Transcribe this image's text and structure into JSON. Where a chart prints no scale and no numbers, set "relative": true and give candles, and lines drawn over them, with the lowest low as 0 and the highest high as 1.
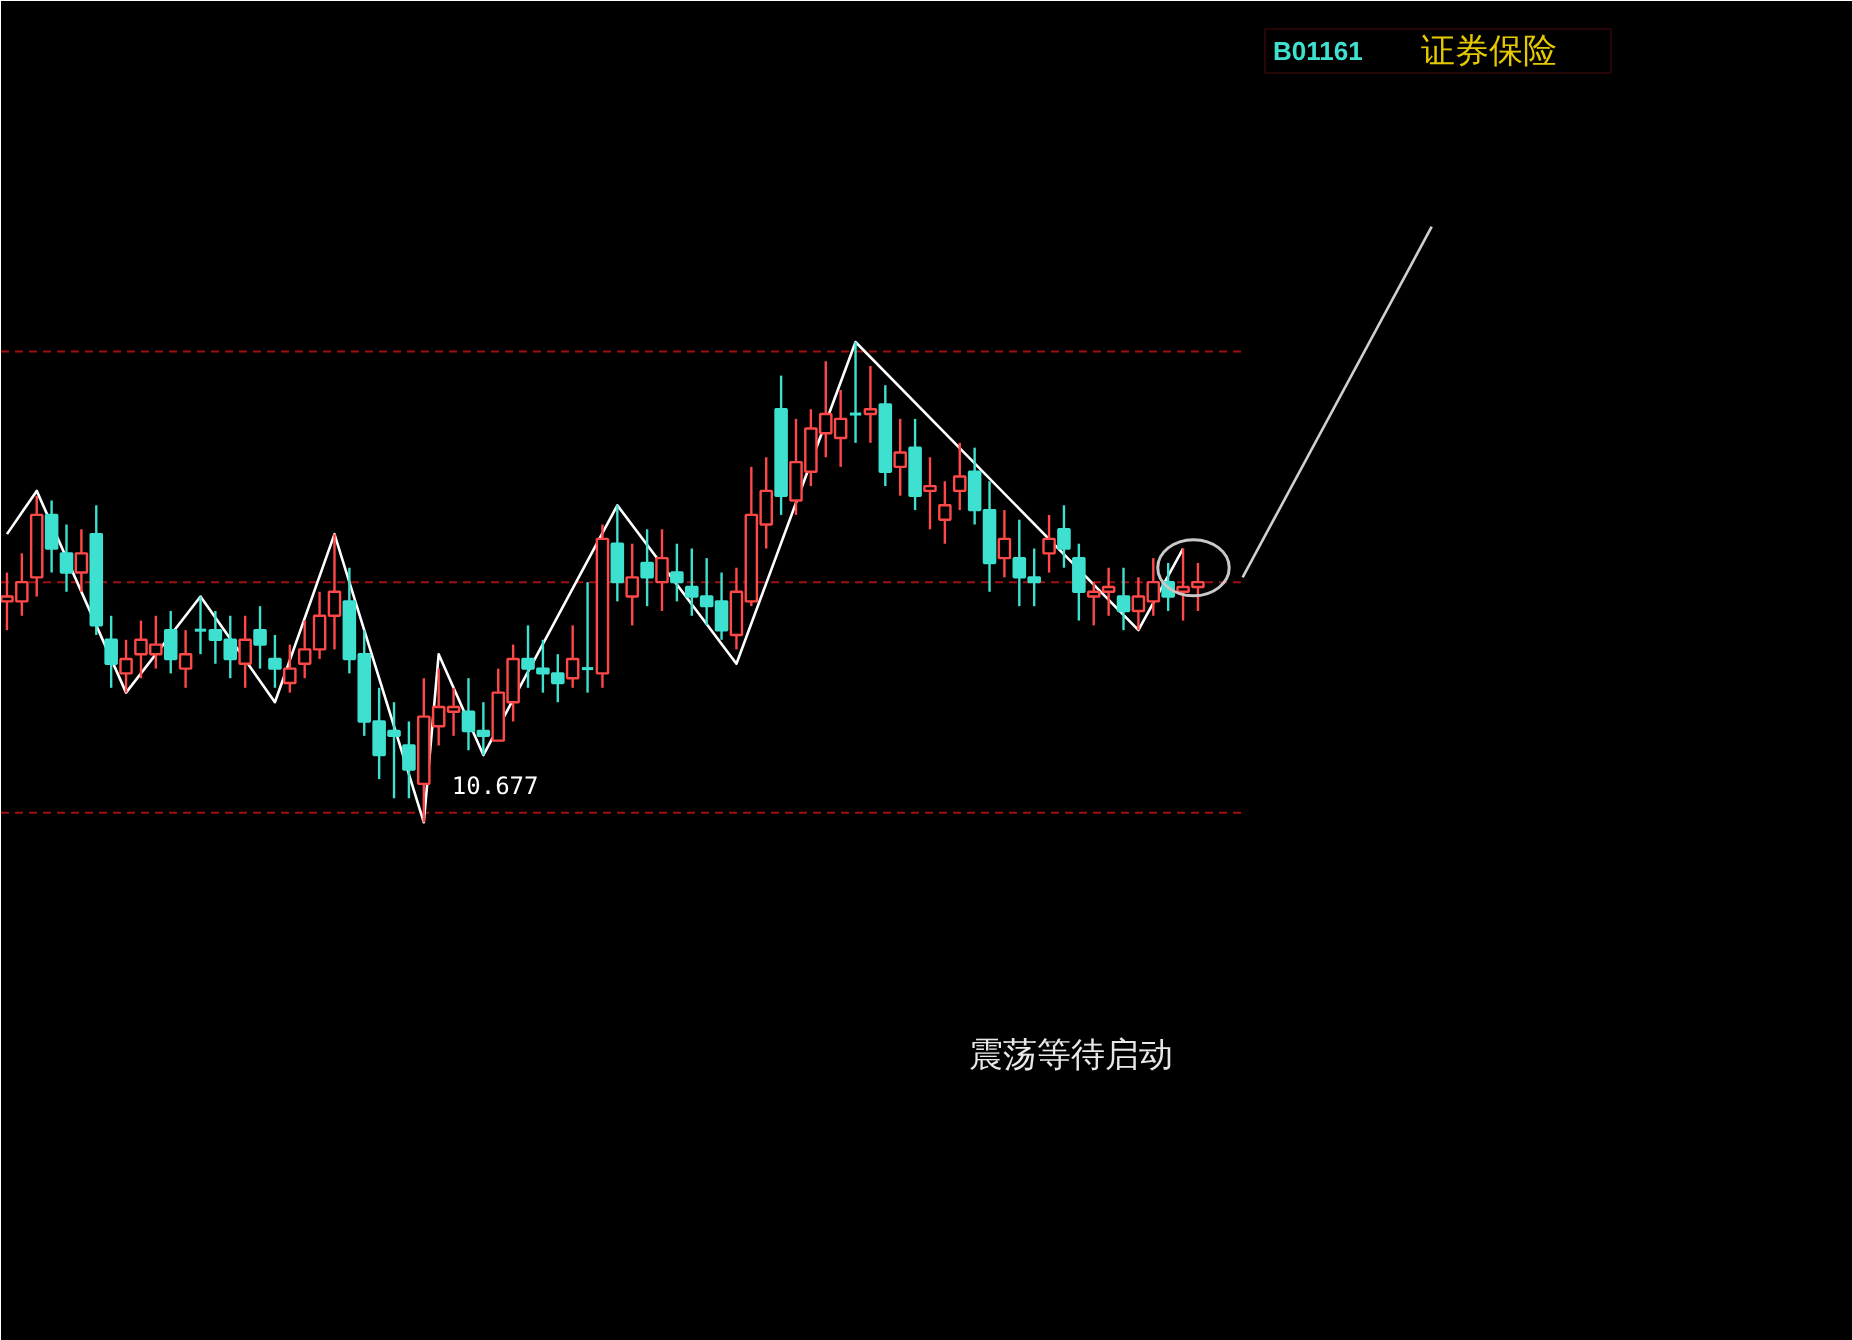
{
  "chart_data": {
    "type": "candlestick",
    "title": "证券保险",
    "subtitle": "B01161",
    "relative": true,
    "tick_labels": false,
    "grid": false,
    "categories": [
      null,
      null,
      null,
      null,
      null,
      null,
      null,
      null,
      null,
      null,
      null,
      null,
      null,
      null,
      null,
      null,
      null,
      null,
      null,
      null,
      null,
      null,
      null,
      null,
      null,
      null,
      null,
      null,
      null,
      null,
      null,
      null,
      null,
      null,
      null,
      null,
      null,
      null,
      null,
      null,
      null,
      null,
      null,
      null,
      null,
      null,
      null,
      null,
      null,
      null,
      null,
      null,
      null,
      null,
      null,
      null,
      null,
      null,
      null,
      null,
      null,
      null,
      null,
      null,
      null,
      null,
      null,
      null,
      null,
      null,
      null,
      null,
      null,
      null,
      null,
      null,
      null,
      null,
      null,
      null,
      null
    ],
    "ohlc": [
      [
        0.46,
        0.52,
        0.4,
        0.47
      ],
      [
        0.46,
        0.56,
        0.43,
        0.5
      ],
      [
        0.51,
        0.68,
        0.47,
        0.64
      ],
      [
        0.64,
        0.67,
        0.52,
        0.57
      ],
      [
        0.56,
        0.62,
        0.48,
        0.52
      ],
      [
        0.52,
        0.61,
        0.48,
        0.56
      ],
      [
        0.6,
        0.66,
        0.39,
        0.41
      ],
      [
        0.38,
        0.43,
        0.28,
        0.33
      ],
      [
        0.31,
        0.38,
        0.27,
        0.34
      ],
      [
        0.35,
        0.42,
        0.3,
        0.38
      ],
      [
        0.35,
        0.43,
        0.32,
        0.37
      ],
      [
        0.4,
        0.44,
        0.31,
        0.34
      ],
      [
        0.32,
        0.4,
        0.28,
        0.35
      ],
      [
        0.4,
        0.47,
        0.35,
        0.4
      ],
      [
        0.4,
        0.44,
        0.33,
        0.38
      ],
      [
        0.38,
        0.43,
        0.3,
        0.34
      ],
      [
        0.33,
        0.43,
        0.28,
        0.38
      ],
      [
        0.4,
        0.45,
        0.32,
        0.37
      ],
      [
        0.34,
        0.39,
        0.28,
        0.32
      ],
      [
        0.29,
        0.37,
        0.27,
        0.32
      ],
      [
        0.33,
        0.42,
        0.3,
        0.36
      ],
      [
        0.36,
        0.48,
        0.34,
        0.43
      ],
      [
        0.43,
        0.6,
        0.36,
        0.48
      ],
      [
        0.46,
        0.53,
        0.31,
        0.34
      ],
      [
        0.35,
        0.4,
        0.18,
        0.21
      ],
      [
        0.21,
        0.28,
        0.09,
        0.14
      ],
      [
        0.19,
        0.25,
        0.05,
        0.18
      ],
      [
        0.16,
        0.21,
        0.05,
        0.11
      ],
      [
        0.08,
        0.3,
        0,
        0.22
      ],
      [
        0.2,
        0.32,
        0.16,
        0.24
      ],
      [
        0.23,
        0.28,
        0.18,
        0.24
      ],
      [
        0.23,
        0.3,
        0.15,
        0.19
      ],
      [
        0.19,
        0.25,
        0.14,
        0.18
      ],
      [
        0.17,
        0.32,
        0.17,
        0.27
      ],
      [
        0.25,
        0.37,
        0.21,
        0.34
      ],
      [
        0.34,
        0.41,
        0.28,
        0.32
      ],
      [
        0.32,
        0.38,
        0.27,
        0.31
      ],
      [
        0.31,
        0.35,
        0.25,
        0.29
      ],
      [
        0.3,
        0.41,
        0.28,
        0.34
      ],
      [
        0.32,
        0.5,
        0.27,
        0.32
      ],
      [
        0.31,
        0.62,
        0.28,
        0.59
      ],
      [
        0.58,
        0.66,
        0.46,
        0.5
      ],
      [
        0.47,
        0.58,
        0.41,
        0.51
      ],
      [
        0.54,
        0.61,
        0.45,
        0.51
      ],
      [
        0.5,
        0.61,
        0.44,
        0.55
      ],
      [
        0.52,
        0.58,
        0.46,
        0.5
      ],
      [
        0.49,
        0.57,
        0.43,
        0.47
      ],
      [
        0.47,
        0.55,
        0.41,
        0.45
      ],
      [
        0.46,
        0.52,
        0.38,
        0.4
      ],
      [
        0.39,
        0.53,
        0.36,
        0.48
      ],
      [
        0.46,
        0.74,
        0.45,
        0.64
      ],
      [
        0.62,
        0.76,
        0.57,
        0.69
      ],
      [
        0.86,
        0.93,
        0.64,
        0.68
      ],
      [
        0.67,
        0.84,
        0.64,
        0.75
      ],
      [
        0.73,
        0.86,
        0.7,
        0.82
      ],
      [
        0.81,
        0.96,
        0.76,
        0.85
      ],
      [
        0.8,
        0.9,
        0.74,
        0.84
      ],
      [
        0.85,
        1,
        0.79,
        0.85
      ],
      [
        0.85,
        0.95,
        0.79,
        0.86
      ],
      [
        0.87,
        0.91,
        0.7,
        0.73
      ],
      [
        0.74,
        0.84,
        0.68,
        0.77
      ],
      [
        0.78,
        0.84,
        0.65,
        0.68
      ],
      [
        0.69,
        0.76,
        0.61,
        0.7
      ],
      [
        0.63,
        0.71,
        0.58,
        0.66
      ],
      [
        0.69,
        0.79,
        0.65,
        0.72
      ],
      [
        0.73,
        0.78,
        0.62,
        0.65
      ],
      [
        0.65,
        0.71,
        0.48,
        0.54
      ],
      [
        0.55,
        0.65,
        0.51,
        0.59
      ],
      [
        0.55,
        0.63,
        0.45,
        0.51
      ],
      [
        0.51,
        0.57,
        0.45,
        0.5
      ],
      [
        0.56,
        0.64,
        0.52,
        0.59
      ],
      [
        0.61,
        0.66,
        0.53,
        0.57
      ],
      [
        0.55,
        0.58,
        0.42,
        0.48
      ],
      [
        0.47,
        0.5,
        0.41,
        0.48
      ],
      [
        0.48,
        0.53,
        0.43,
        0.49
      ],
      [
        0.47,
        0.53,
        0.4,
        0.44
      ],
      [
        0.44,
        0.51,
        0.4,
        0.47
      ],
      [
        0.46,
        0.55,
        0.43,
        0.5
      ],
      [
        0.5,
        0.54,
        0.44,
        0.47
      ],
      [
        0.48,
        0.57,
        0.42,
        0.49
      ],
      [
        0.49,
        0.54,
        0.44,
        0.5
      ]
    ],
    "colors": [
      "#ff4848",
      "#ff4848",
      "#ff4848",
      "#3ee0d0",
      "#3ee0d0",
      "#ff4848",
      "#3ee0d0",
      "#3ee0d0",
      "#ff4848",
      "#ff4848",
      "#ff4848",
      "#3ee0d0",
      "#ff4848",
      "#3ee0d0",
      "#3ee0d0",
      "#3ee0d0",
      "#ff4848",
      "#3ee0d0",
      "#3ee0d0",
      "#ff4848",
      "#ff4848",
      "#ff4848",
      "#ff4848",
      "#3ee0d0",
      "#3ee0d0",
      "#3ee0d0",
      "#3ee0d0",
      "#3ee0d0",
      "#ff4848",
      "#ff4848",
      "#ff4848",
      "#3ee0d0",
      "#3ee0d0",
      "#ff4848",
      "#ff4848",
      "#3ee0d0",
      "#3ee0d0",
      "#3ee0d0",
      "#ff4848",
      "#3ee0d0",
      "#ff4848",
      "#3ee0d0",
      "#ff4848",
      "#3ee0d0",
      "#ff4848",
      "#3ee0d0",
      "#3ee0d0",
      "#3ee0d0",
      "#3ee0d0",
      "#ff4848",
      "#ff4848",
      "#ff4848",
      "#3ee0d0",
      "#ff4848",
      "#ff4848",
      "#ff4848",
      "#ff4848",
      "#3ee0d0",
      "#ff4848",
      "#3ee0d0",
      "#ff4848",
      "#3ee0d0",
      "#ff4848",
      "#ff4848",
      "#ff4848",
      "#3ee0d0",
      "#3ee0d0",
      "#ff4848",
      "#3ee0d0",
      "#3ee0d0",
      "#ff4848",
      "#3ee0d0",
      "#3ee0d0",
      "#ff4848",
      "#ff4848",
      "#3ee0d0",
      "#ff4848",
      "#ff4848",
      "#3ee0d0",
      "#ff4848",
      "#ff4848"
    ],
    "series": [
      {
        "type": "line",
        "color": "#ffffff",
        "values": [
          0.6,
          null,
          0.69,
          null,
          null,
          null,
          null,
          null,
          0.27,
          null,
          null,
          null,
          null,
          0.47,
          null,
          null,
          null,
          null,
          0.25,
          null,
          null,
          null,
          0.6,
          null,
          null,
          null,
          null,
          null,
          0,
          0.35,
          null,
          null,
          0.14,
          null,
          null,
          null,
          null,
          null,
          null,
          null,
          null,
          0.66,
          null,
          null,
          null,
          null,
          null,
          null,
          null,
          0.33,
          null,
          null,
          null,
          null,
          null,
          null,
          null,
          1,
          null,
          null,
          null,
          null,
          null,
          null,
          null,
          null,
          null,
          null,
          null,
          null,
          null,
          null,
          null,
          null,
          null,
          null,
          0.4,
          null,
          null,
          0.57,
          null
        ]
      }
    ],
    "ref_lines": [
      {
        "axis": "y",
        "value": 0.98,
        "color": "#a01010",
        "line_style": "dashed"
      },
      {
        "axis": "y",
        "value": 0.5,
        "color": "#a01010",
        "line_style": "dashed"
      },
      {
        "axis": "y",
        "value": 0.02,
        "color": "#a01010",
        "line_style": "dashed"
      }
    ],
    "annotations": [
      "10.677",
      "震荡等待启动"
    ]
  }
}
